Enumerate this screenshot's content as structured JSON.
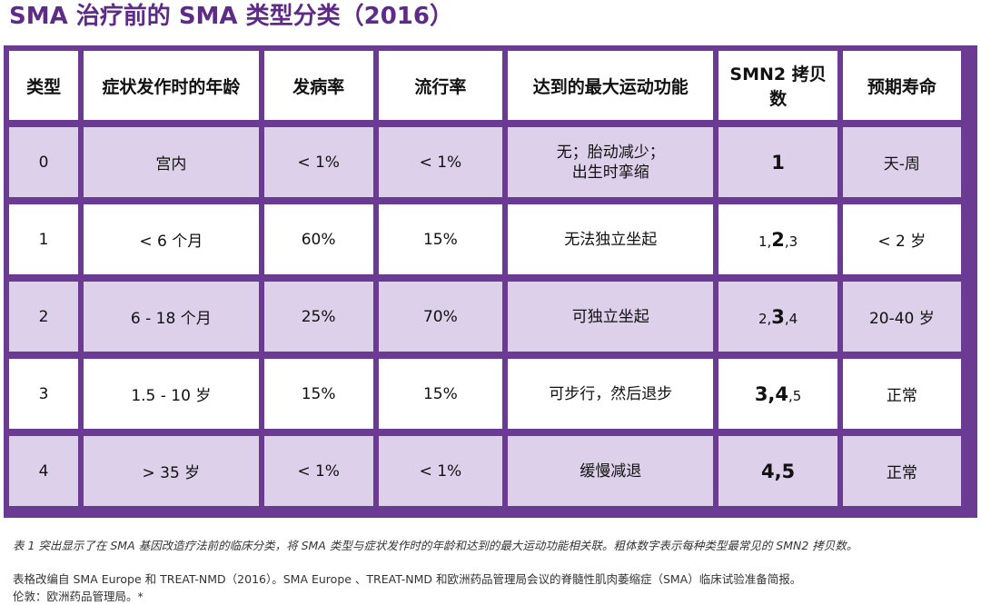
{
  "title": "SMA 治疗前的 SMA 类型分类（2016）",
  "table": {
    "headers": [
      "类型",
      "症状发作时的年龄",
      "发病率",
      "流行率",
      "达到的最大运动功能",
      "SMN2 拷贝数",
      "预期寿命"
    ],
    "rows": [
      {
        "type": "0",
        "onset": "宫内",
        "incidence": "< 1%",
        "prevalence": "< 1%",
        "function": [
          "无；胎动减少；",
          "出生时挛缩"
        ],
        "copies": [
          {
            "t": "1",
            "bold": true
          }
        ],
        "life": "天-周"
      },
      {
        "type": "1",
        "onset": "< 6 个月",
        "incidence": "60%",
        "prevalence": "15%",
        "function": [
          "无法独立坐起"
        ],
        "copies": [
          {
            "t": "1,",
            "bold": false
          },
          {
            "t": "2",
            "bold": true
          },
          {
            "t": ",3",
            "bold": false
          }
        ],
        "life": "< 2 岁"
      },
      {
        "type": "2",
        "onset": "6 - 18 个月",
        "incidence": "25%",
        "prevalence": "70%",
        "function": [
          "可独立坐起"
        ],
        "copies": [
          {
            "t": "2,",
            "bold": false
          },
          {
            "t": "3",
            "bold": true
          },
          {
            "t": ",4",
            "bold": false
          }
        ],
        "life": "20-40 岁"
      },
      {
        "type": "3",
        "onset": "1.5 - 10 岁",
        "incidence": "15%",
        "prevalence": "15%",
        "function": [
          "可步行，然后退步"
        ],
        "copies": [
          {
            "t": "3,4",
            "bold": true
          },
          {
            "t": ",5",
            "bold": false
          }
        ],
        "life": "正常"
      },
      {
        "type": "4",
        "onset": "> 35 岁",
        "incidence": "< 1%",
        "prevalence": "< 1%",
        "function": [
          "缓慢减退"
        ],
        "copies": [
          {
            "t": "4,5",
            "bold": true
          }
        ],
        "life": "正常"
      }
    ]
  },
  "caption": "表 1 突出显示了在 SMA 基因改造疗法前的临床分类，将 SMA 类型与症状发作时的年龄和达到的最大运动功能相关联。粗体数字表示每种类型最常见的 SMN2 拷贝数。",
  "source_line1": "表格改编自 SMA Europe 和 TREAT-NMD（2016）。SMA Europe 、TREAT-NMD 和欧洲药品管理局会议的脊髓性肌肉萎缩症（SMA）临床试验准备简报。",
  "source_line2": "伦敦：欧洲药品管理局。*",
  "colors": {
    "title": "#5e2b86",
    "table_frame": "#6b3a93",
    "shaded_row": "#dcd0ea"
  }
}
